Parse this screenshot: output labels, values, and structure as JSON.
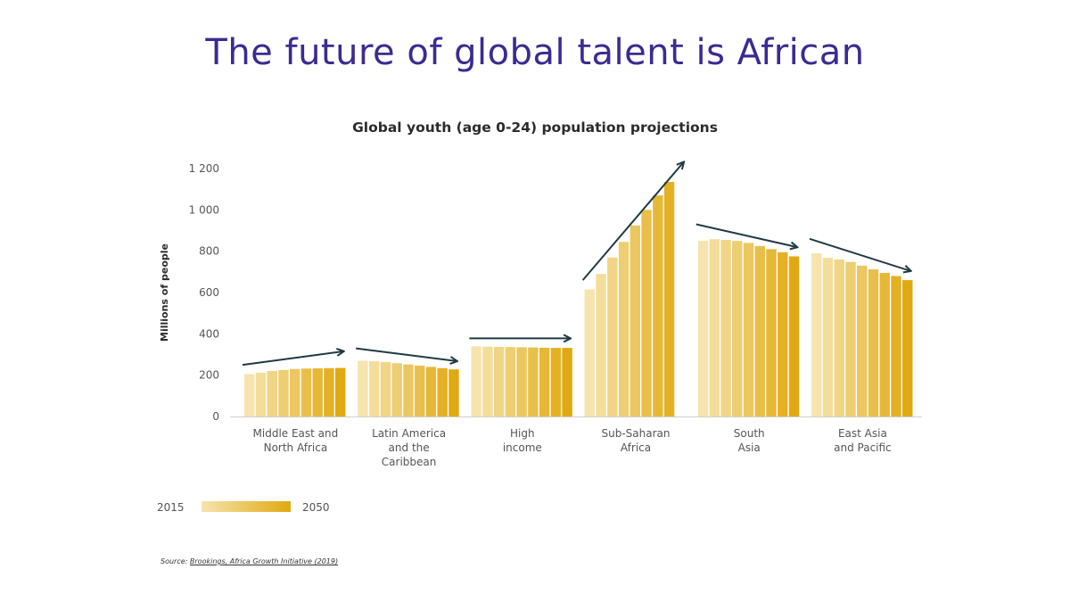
{
  "slide": {
    "title": "The future of global talent is African"
  },
  "chart_data": {
    "type": "bar",
    "title": "Global youth (age 0-24) population projections",
    "ylabel": "Millions of people",
    "xlabel": "",
    "ylim": [
      0,
      1200
    ],
    "yticks": [
      {
        "value": 0,
        "label": "0"
      },
      {
        "value": 200,
        "label": "200"
      },
      {
        "value": 400,
        "label": "400"
      },
      {
        "value": 600,
        "label": "600"
      },
      {
        "value": 800,
        "label": "800"
      },
      {
        "value": 1000,
        "label": "1 000"
      },
      {
        "value": 1200,
        "label": "1 200"
      }
    ],
    "grid": false,
    "color_start": "#f6e4ae",
    "color_end": "#e1a911",
    "arrow_color": "#1f3b44",
    "groups": [
      {
        "label": [
          "Middle East and",
          "North Africa"
        ],
        "values": [
          205,
          212,
          220,
          225,
          230,
          232,
          233,
          234,
          235
        ]
      },
      {
        "label": [
          "Latin America",
          "and the",
          "Caribbean"
        ],
        "values": [
          270,
          268,
          264,
          258,
          252,
          246,
          240,
          234,
          228
        ]
      },
      {
        "label": [
          "High",
          "income"
        ],
        "values": [
          340,
          338,
          337,
          336,
          335,
          334,
          333,
          332,
          332
        ]
      },
      {
        "label": [
          "Sub-Saharan",
          "Africa"
        ],
        "values": [
          615,
          690,
          770,
          845,
          925,
          1000,
          1070,
          1135,
          0
        ]
      },
      {
        "label": [
          "South",
          "Asia"
        ],
        "values": [
          850,
          858,
          855,
          850,
          840,
          825,
          810,
          795,
          775
        ]
      },
      {
        "label": [
          "East Asia",
          "and Pacific"
        ],
        "values": [
          790,
          768,
          760,
          748,
          730,
          712,
          695,
          680,
          660
        ]
      }
    ],
    "trend_arrows": [
      {
        "from": 250,
        "to": 315
      },
      {
        "from": 330,
        "to": 268
      },
      {
        "from": 378,
        "to": 378
      },
      {
        "from": 660,
        "to": 1230
      },
      {
        "from": 930,
        "to": 820
      },
      {
        "from": 860,
        "to": 705
      }
    ],
    "legend": {
      "start_label": "2015",
      "end_label": "2050",
      "placement": "bottom-left"
    }
  },
  "source": {
    "prefix": "Source: ",
    "link_text": "Brookings, Africa Growth Initiative (2019)"
  }
}
